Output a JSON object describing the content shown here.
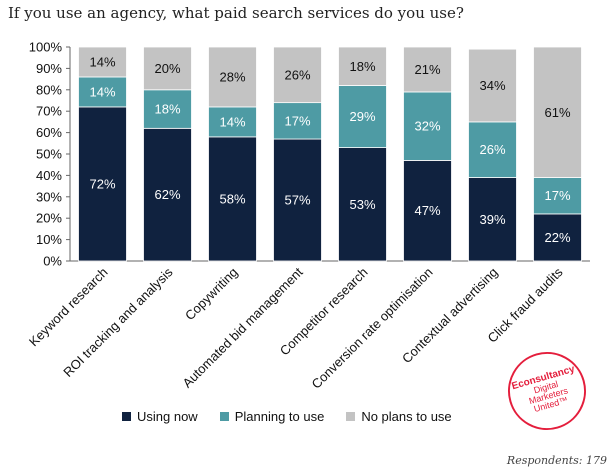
{
  "title": "If you use an agency, what paid search services do you use?",
  "respondents": "Respondents: 179",
  "logo": {
    "brand": "Econsultancy",
    "line1": "Digital",
    "line2": "Marketers",
    "line3": "United™"
  },
  "colors": {
    "using": "#10223f",
    "planning": "#4e9ba4",
    "no_plans": "#c3c3c3"
  },
  "chart_data": {
    "type": "bar",
    "stacked": true,
    "title": "If you use an agency, what paid search services do you use?",
    "xlabel": "",
    "ylabel": "",
    "ylim": [
      0,
      100
    ],
    "yticks": [
      "0%",
      "10%",
      "20%",
      "30%",
      "40%",
      "50%",
      "60%",
      "70%",
      "80%",
      "90%",
      "100%"
    ],
    "legend_position": "bottom",
    "categories": [
      "Keyword research",
      "ROI tracking and analysis",
      "Copywriting",
      "Automated bid management",
      "Competitor research",
      "Conversion rate optimisation",
      "Contextual advertising",
      "Click fraud audits"
    ],
    "series": [
      {
        "name": "Using now",
        "key": "using",
        "values": [
          72,
          62,
          58,
          57,
          53,
          47,
          39,
          22
        ]
      },
      {
        "name": "Planning to use",
        "key": "planning",
        "values": [
          14,
          18,
          14,
          17,
          29,
          32,
          26,
          17
        ]
      },
      {
        "name": "No plans to use",
        "key": "no_plans",
        "values": [
          14,
          20,
          28,
          26,
          18,
          21,
          34,
          61
        ]
      }
    ]
  }
}
